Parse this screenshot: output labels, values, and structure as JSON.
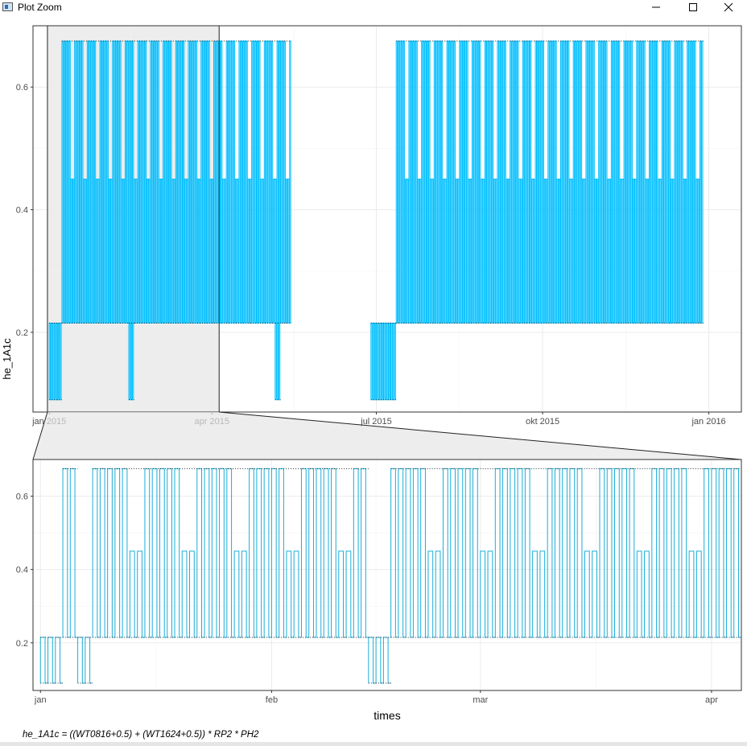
{
  "window": {
    "title": "Plot Zoom",
    "buttons": {
      "minimize": "minimize",
      "maximize": "maximize",
      "close": "close"
    }
  },
  "colors": {
    "series": "#00bfff",
    "zoom_series": "#1aaed8",
    "grid": "#ebebeb",
    "panel_border": "#333333",
    "zoom_fill": "#e5e5e5"
  },
  "chart_data": [
    {
      "type": "line",
      "panel": "overview",
      "title": "",
      "xlabel": "",
      "ylabel": "he_1A1c",
      "x_ticks": [
        {
          "date": "2015-01-01",
          "label": "jan 2015"
        },
        {
          "date": "2015-04-01",
          "label": "apr 2015"
        },
        {
          "date": "2015-07-01",
          "label": "jul 2015"
        },
        {
          "date": "2015-10-01",
          "label": "okt 2015"
        },
        {
          "date": "2016-01-01",
          "label": "jan 2016"
        }
      ],
      "xlim": [
        "2014-12-23",
        "2016-01-19"
      ],
      "y_ticks": [
        0.2,
        0.4,
        0.6
      ],
      "ylim": [
        0.07,
        0.7
      ],
      "levels": {
        "high": 0.675,
        "mid": 0.45,
        "low": 0.215,
        "min": 0.09
      },
      "zoom_window": [
        "2014-12-31",
        "2015-04-05"
      ],
      "grid": true,
      "legend": "none",
      "segments": [
        {
          "start": "2015-01-01",
          "end": "2015-01-08",
          "level": "min"
        },
        {
          "start": "2015-01-08",
          "end": "2015-05-15",
          "level": "high"
        },
        {
          "start": "2015-02-14",
          "end": "2015-02-17",
          "level": "min"
        },
        {
          "start": "2015-05-06",
          "end": "2015-05-09",
          "level": "min"
        },
        {
          "start": "2015-06-28",
          "end": "2015-07-12",
          "level": "low"
        },
        {
          "start": "2015-07-12",
          "end": "2015-12-29",
          "level": "high"
        }
      ]
    },
    {
      "type": "line",
      "panel": "zoom",
      "title": "",
      "xlabel": "times",
      "ylabel": "",
      "x_ticks": [
        {
          "date": "2015-01-01",
          "label": "jan"
        },
        {
          "date": "2015-02-01",
          "label": "feb"
        },
        {
          "date": "2015-03-01",
          "label": "mar"
        },
        {
          "date": "2015-04-01",
          "label": "apr"
        }
      ],
      "xlim": [
        "2014-12-31",
        "2015-04-05"
      ],
      "y_ticks": [
        0.2,
        0.4,
        0.6
      ],
      "ylim": [
        0.07,
        0.7
      ],
      "levels": {
        "high": 0.675,
        "mid": 0.45,
        "low": 0.215,
        "min": 0.09
      },
      "grid": true,
      "legend": "none",
      "segments": [
        {
          "start": "2015-01-01",
          "end": "2015-01-02",
          "level": "min"
        },
        {
          "start": "2015-01-02",
          "end": "2015-01-04",
          "level": "low"
        },
        {
          "start": "2015-01-04",
          "end": "2015-01-06",
          "level": "high"
        },
        {
          "start": "2015-01-06",
          "end": "2015-01-07",
          "level": "low"
        },
        {
          "start": "2015-01-07",
          "end": "2015-01-08",
          "level": "min"
        },
        {
          "start": "2015-01-08",
          "end": "2015-02-14",
          "level": "high"
        },
        {
          "start": "2015-02-14",
          "end": "2015-02-17",
          "level": "min"
        },
        {
          "start": "2015-02-17",
          "end": "2015-04-05",
          "level": "high"
        }
      ]
    }
  ],
  "caption": "he_1A1c = ((WT0816+0.5) + (WT1624+0.5)) * RP2 * PH2"
}
